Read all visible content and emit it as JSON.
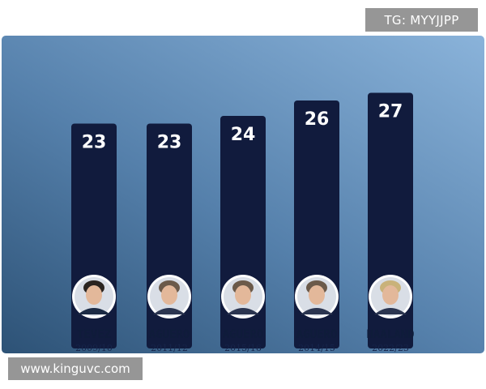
{
  "watermarks": {
    "top": "TG: MYYJJPP",
    "bottom": "www.kinguvc.com"
  },
  "colors": {
    "bar": "#111b3d",
    "label_dark": "#0f1c3a",
    "panel_light": "#8ab3da",
    "panel_dark": "#2d5276"
  },
  "chart_data": {
    "type": "bar",
    "categories": [
      "TEVEZ",
      "AGUERO",
      "AGUERO",
      "AGUERO",
      "HAALAND"
    ],
    "seasons": [
      "2009/10",
      "2011/12",
      "2015/16",
      "2014/15",
      "2022/23"
    ],
    "values": [
      23,
      23,
      24,
      26,
      27
    ],
    "value_labels": [
      "23",
      "23",
      "24",
      "26",
      "27"
    ],
    "player_icons": [
      "player-avatar-icon",
      "player-avatar-icon",
      "player-avatar-icon",
      "player-avatar-icon",
      "player-avatar-icon"
    ],
    "grid": false,
    "legend": "none"
  }
}
